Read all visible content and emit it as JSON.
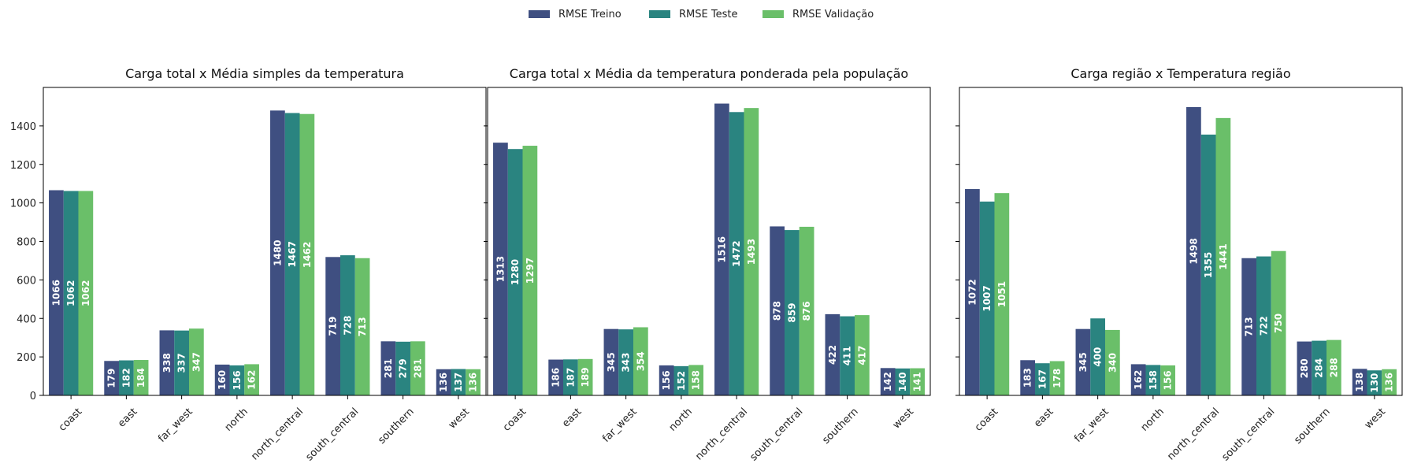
{
  "legend": {
    "placement": "top-center",
    "entries": [
      {
        "name": "RMSE Treino",
        "color": "#3f4f81"
      },
      {
        "name": "RMSE Teste",
        "color": "#2a8480"
      },
      {
        "name": "RMSE Validação",
        "color": "#6abf69"
      }
    ]
  },
  "chart_data": [
    {
      "type": "bar",
      "title": "Carga total x Média simples da temperatura",
      "xlabel": "",
      "ylabel": "",
      "ylim": [
        0,
        1600
      ],
      "yticks": [
        0,
        200,
        400,
        600,
        800,
        1000,
        1200,
        1400
      ],
      "grid": false,
      "categories": [
        "coast",
        "east",
        "far_west",
        "north",
        "north_central",
        "south_central",
        "southern",
        "west"
      ],
      "series": [
        {
          "name": "RMSE Treino",
          "values": [
            1066,
            179,
            338,
            160,
            1480,
            719,
            281,
            136
          ]
        },
        {
          "name": "RMSE Teste",
          "values": [
            1062,
            182,
            337,
            156,
            1467,
            728,
            279,
            137
          ]
        },
        {
          "name": "RMSE Validação",
          "values": [
            1062,
            184,
            347,
            162,
            1462,
            713,
            281,
            136
          ]
        }
      ]
    },
    {
      "type": "bar",
      "title": "Carga total x Média da temperatura ponderada pela população",
      "xlabel": "",
      "ylabel": "",
      "ylim": [
        0,
        1600
      ],
      "yticks": [
        0,
        200,
        400,
        600,
        800,
        1000,
        1200,
        1400
      ],
      "grid": false,
      "categories": [
        "coast",
        "east",
        "far_west",
        "north",
        "north_central",
        "south_central",
        "southern",
        "west"
      ],
      "series": [
        {
          "name": "RMSE Treino",
          "values": [
            1313,
            186,
            345,
            156,
            1516,
            878,
            422,
            142
          ]
        },
        {
          "name": "RMSE Teste",
          "values": [
            1280,
            187,
            343,
            152,
            1472,
            859,
            411,
            140
          ]
        },
        {
          "name": "RMSE Validação",
          "values": [
            1297,
            189,
            354,
            158,
            1493,
            876,
            417,
            141
          ]
        }
      ]
    },
    {
      "type": "bar",
      "title": "Carga região x Temperatura região",
      "xlabel": "",
      "ylabel": "",
      "ylim": [
        0,
        1600
      ],
      "yticks": [
        0,
        200,
        400,
        600,
        800,
        1000,
        1200,
        1400
      ],
      "grid": false,
      "categories": [
        "coast",
        "east",
        "far_west",
        "north",
        "north_central",
        "south_central",
        "southern",
        "west"
      ],
      "series": [
        {
          "name": "RMSE Treino",
          "values": [
            1072,
            183,
            345,
            162,
            1498,
            713,
            280,
            138
          ]
        },
        {
          "name": "RMSE Teste",
          "values": [
            1007,
            167,
            400,
            158,
            1355,
            722,
            284,
            130
          ]
        },
        {
          "name": "RMSE Validação",
          "values": [
            1051,
            178,
            340,
            156,
            1441,
            750,
            288,
            136
          ]
        }
      ]
    }
  ]
}
